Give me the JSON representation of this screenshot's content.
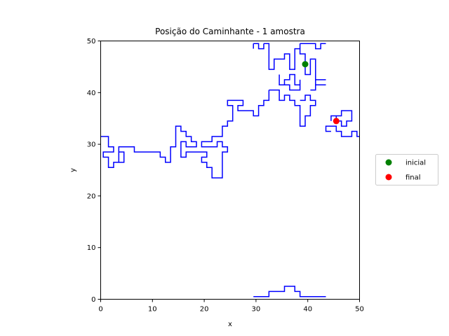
{
  "chart_data": {
    "type": "line",
    "title": "Posição do Caminhante - 1 amostra",
    "xlabel": "x",
    "ylabel": "y",
    "xlim": [
      0,
      50
    ],
    "ylim": [
      0,
      50
    ],
    "xticks": [
      "0",
      "10",
      "20",
      "30",
      "40",
      "50"
    ],
    "yticks": [
      "0",
      "10",
      "20",
      "30",
      "40",
      "50"
    ],
    "grid": false,
    "legend_position": "right",
    "walk_color": "#0000ff",
    "series": [
      {
        "name": "inicial",
        "color": "#008000",
        "x": [
          39.5
        ],
        "y": [
          45.5
        ]
      },
      {
        "name": "final",
        "color": "#ff0000",
        "x": [
          45.5
        ],
        "y": [
          34.5
        ]
      }
    ],
    "walk_segments": [
      [
        [
          29.5,
          49.5
        ],
        [
          30.5,
          49.5
        ],
        [
          30.5,
          48.5
        ],
        [
          31.5,
          48.5
        ],
        [
          31.5,
          49.5
        ]
      ],
      [
        [
          29.5,
          48.5
        ],
        [
          29.5,
          49.5
        ]
      ],
      [
        [
          31.5,
          49.5
        ],
        [
          32.5,
          49.5
        ],
        [
          32.5,
          44.5
        ],
        [
          33.5,
          44.5
        ],
        [
          33.5,
          46.5
        ],
        [
          35.5,
          46.5
        ],
        [
          35.5,
          47.5
        ],
        [
          36.5,
          47.5
        ],
        [
          36.5,
          44.5
        ],
        [
          37.5,
          44.5
        ],
        [
          37.5,
          48.5
        ],
        [
          38.5,
          48.5
        ],
        [
          38.5,
          47.5
        ],
        [
          39.5,
          47.5
        ],
        [
          39.5,
          45.5
        ]
      ],
      [
        [
          38.5,
          49.5
        ],
        [
          38.5,
          48.5
        ]
      ],
      [
        [
          38.5,
          49.5
        ],
        [
          41.5,
          49.5
        ],
        [
          41.5,
          48.5
        ],
        [
          42.5,
          48.5
        ],
        [
          42.5,
          49.5
        ],
        [
          43.5,
          49.5
        ]
      ],
      [
        [
          39.5,
          45.5
        ],
        [
          39.5,
          43.5
        ],
        [
          40.5,
          43.5
        ],
        [
          40.5,
          46.5
        ],
        [
          41.5,
          46.5
        ],
        [
          41.5,
          42.5
        ],
        [
          43.5,
          42.5
        ]
      ],
      [
        [
          34.5,
          43.5
        ],
        [
          34.5,
          41.5
        ],
        [
          35.5,
          41.5
        ],
        [
          35.5,
          42.5
        ],
        [
          36.5,
          42.5
        ],
        [
          36.5,
          43.5
        ],
        [
          37.5,
          43.5
        ],
        [
          37.5,
          41.5
        ],
        [
          38.5,
          41.5
        ],
        [
          38.5,
          40.5
        ],
        [
          36.5,
          40.5
        ],
        [
          36.5,
          41.5
        ],
        [
          35.5,
          41.5
        ]
      ],
      [
        [
          38.5,
          41.5
        ],
        [
          38.5,
          42.5
        ]
      ],
      [
        [
          41.5,
          41.5
        ],
        [
          43.5,
          41.5
        ]
      ],
      [
        [
          40.5,
          40.5
        ],
        [
          41.5,
          40.5
        ],
        [
          41.5,
          42.5
        ]
      ],
      [
        [
          32.5,
          40.5
        ],
        [
          34.5,
          40.5
        ],
        [
          34.5,
          38.5
        ],
        [
          35.5,
          38.5
        ],
        [
          35.5,
          39.5
        ],
        [
          36.5,
          39.5
        ],
        [
          36.5,
          38.5
        ],
        [
          37.5,
          38.5
        ],
        [
          37.5,
          37.5
        ],
        [
          38.5,
          37.5
        ],
        [
          38.5,
          33.5
        ],
        [
          39.5,
          33.5
        ],
        [
          39.5,
          35.5
        ],
        [
          40.5,
          35.5
        ],
        [
          40.5,
          37.5
        ],
        [
          41.5,
          37.5
        ],
        [
          41.5,
          38.5
        ],
        [
          40.5,
          38.5
        ],
        [
          40.5,
          39.5
        ],
        [
          39.5,
          39.5
        ],
        [
          39.5,
          38.5
        ],
        [
          38.5,
          38.5
        ]
      ],
      [
        [
          32.5,
          40.5
        ],
        [
          32.5,
          38.5
        ],
        [
          31.5,
          38.5
        ],
        [
          31.5,
          37.5
        ],
        [
          30.5,
          37.5
        ],
        [
          30.5,
          35.5
        ],
        [
          29.5,
          35.5
        ],
        [
          29.5,
          36.5
        ],
        [
          26.5,
          36.5
        ],
        [
          26.5,
          37.5
        ],
        [
          27.5,
          37.5
        ],
        [
          27.5,
          38.5
        ],
        [
          24.5,
          38.5
        ],
        [
          24.5,
          37.5
        ],
        [
          25.5,
          37.5
        ],
        [
          25.5,
          34.5
        ],
        [
          24.5,
          34.5
        ],
        [
          24.5,
          33.5
        ],
        [
          23.5,
          33.5
        ],
        [
          23.5,
          31.5
        ],
        [
          21.5,
          31.5
        ],
        [
          21.5,
          30.5
        ],
        [
          19.5,
          30.5
        ],
        [
          19.5,
          29.5
        ],
        [
          22.5,
          29.5
        ],
        [
          22.5,
          30.5
        ],
        [
          23.5,
          30.5
        ],
        [
          23.5,
          29.5
        ],
        [
          24.5,
          29.5
        ],
        [
          24.5,
          28.5
        ],
        [
          23.5,
          28.5
        ],
        [
          23.5,
          23.5
        ],
        [
          21.5,
          23.5
        ],
        [
          21.5,
          25.5
        ],
        [
          20.5,
          25.5
        ],
        [
          20.5,
          26.5
        ],
        [
          19.5,
          26.5
        ],
        [
          19.5,
          27.5
        ],
        [
          20.5,
          27.5
        ],
        [
          20.5,
          28.5
        ],
        [
          16.5,
          28.5
        ],
        [
          16.5,
          27.5
        ],
        [
          15.5,
          27.5
        ],
        [
          15.5,
          30.5
        ],
        [
          16.5,
          30.5
        ],
        [
          16.5,
          29.5
        ],
        [
          18.5,
          29.5
        ],
        [
          18.5,
          30.5
        ],
        [
          17.5,
          30.5
        ],
        [
          17.5,
          31.5
        ],
        [
          16.5,
          31.5
        ],
        [
          16.5,
          32.5
        ],
        [
          15.5,
          32.5
        ],
        [
          15.5,
          33.5
        ],
        [
          14.5,
          33.5
        ],
        [
          14.5,
          29.5
        ],
        [
          13.5,
          29.5
        ],
        [
          13.5,
          26.5
        ],
        [
          12.5,
          26.5
        ],
        [
          12.5,
          27.5
        ],
        [
          11.5,
          27.5
        ],
        [
          11.5,
          28.5
        ],
        [
          6.5,
          28.5
        ],
        [
          6.5,
          29.5
        ],
        [
          3.5,
          29.5
        ],
        [
          3.5,
          26.5
        ],
        [
          2.5,
          26.5
        ],
        [
          2.5,
          25.5
        ],
        [
          1.5,
          25.5
        ],
        [
          1.5,
          27.5
        ],
        [
          0.5,
          27.5
        ],
        [
          0.5,
          28.5
        ],
        [
          2.5,
          28.5
        ],
        [
          2.5,
          29.5
        ],
        [
          1.5,
          29.5
        ],
        [
          1.5,
          31.5
        ],
        [
          0,
          31.5
        ]
      ],
      [
        [
          3.5,
          26.5
        ],
        [
          4.5,
          26.5
        ],
        [
          4.5,
          28.5
        ],
        [
          3.5,
          28.5
        ]
      ],
      [
        [
          50,
          31.5
        ],
        [
          49.5,
          31.5
        ],
        [
          49.5,
          32.5
        ],
        [
          48.5,
          32.5
        ],
        [
          48.5,
          31.5
        ],
        [
          46.5,
          31.5
        ],
        [
          46.5,
          32.5
        ],
        [
          45.5,
          32.5
        ],
        [
          45.5,
          33.5
        ],
        [
          43.5,
          33.5
        ],
        [
          43.5,
          32.5
        ],
        [
          44.5,
          32.5
        ]
      ],
      [
        [
          44.5,
          34.5
        ],
        [
          44.5,
          35.5
        ],
        [
          45.5,
          35.5
        ],
        [
          45.5,
          34.5
        ],
        [
          46.5,
          34.5
        ],
        [
          46.5,
          33.5
        ],
        [
          47.5,
          33.5
        ],
        [
          47.5,
          34.5
        ],
        [
          48.5,
          34.5
        ],
        [
          48.5,
          36.5
        ],
        [
          46.5,
          36.5
        ],
        [
          46.5,
          35.5
        ],
        [
          45.5,
          35.5
        ]
      ],
      [
        [
          29.5,
          0.5
        ],
        [
          32.5,
          0.5
        ],
        [
          32.5,
          1.5
        ],
        [
          35.5,
          1.5
        ],
        [
          35.5,
          2.5
        ],
        [
          37.5,
          2.5
        ],
        [
          37.5,
          1.5
        ],
        [
          38.5,
          1.5
        ],
        [
          38.5,
          0.5
        ],
        [
          43.5,
          0.5
        ]
      ]
    ]
  }
}
